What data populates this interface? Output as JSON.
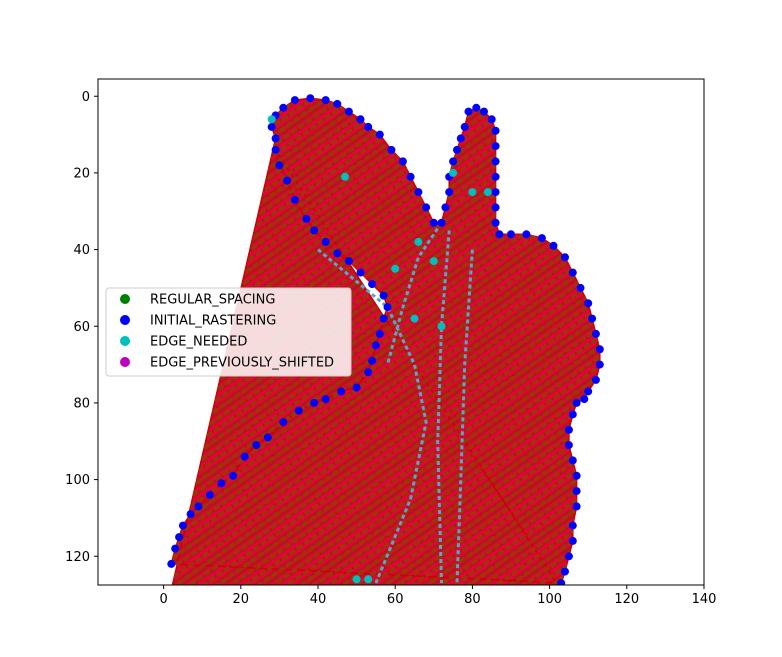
{
  "chart_data": {
    "type": "scatter",
    "title": "",
    "xlabel": "",
    "ylabel": "",
    "xlim": [
      -17,
      140
    ],
    "ylim": [
      127.5,
      -4.5
    ],
    "y_inverted": true,
    "grid": false,
    "legend_placement": "center-left",
    "x_ticks": [
      0,
      20,
      40,
      60,
      80,
      100,
      120,
      140
    ],
    "y_ticks": [
      0,
      20,
      40,
      60,
      80,
      100,
      120
    ],
    "x_tick_labels": [
      "0",
      "20",
      "40",
      "60",
      "80",
      "100",
      "120",
      "140"
    ],
    "y_tick_labels": [
      "0",
      "20",
      "40",
      "60",
      "80",
      "100",
      "120"
    ],
    "legend": [
      {
        "label": "REGULAR_SPACING",
        "color": "#008000"
      },
      {
        "label": "INITIAL_RASTERING",
        "color": "#0000ff"
      },
      {
        "label": "EDGE_NEEDED",
        "color": "#00bfbf"
      },
      {
        "label": "EDGE_PREVIOUSLY_SHIFTED",
        "color": "#bf00bf"
      }
    ],
    "series": [
      {
        "name": "INITIAL_RASTERING",
        "color": "#0000ff",
        "points": [
          [
            29,
            11
          ],
          [
            28,
            8
          ],
          [
            29,
            5
          ],
          [
            31,
            3
          ],
          [
            34,
            1
          ],
          [
            38,
            0.5
          ],
          [
            42,
            1
          ],
          [
            45,
            2
          ],
          [
            48,
            4
          ],
          [
            51,
            6
          ],
          [
            53,
            8
          ],
          [
            56,
            10
          ],
          [
            59,
            14
          ],
          [
            62,
            17
          ],
          [
            64,
            21
          ],
          [
            66,
            25
          ],
          [
            68,
            29
          ],
          [
            70,
            33
          ],
          [
            72,
            33
          ],
          [
            73,
            29
          ],
          [
            74,
            25
          ],
          [
            74,
            21
          ],
          [
            75,
            17
          ],
          [
            76,
            14
          ],
          [
            77,
            11
          ],
          [
            78,
            8
          ],
          [
            79,
            4
          ],
          [
            81,
            3
          ],
          [
            83,
            4
          ],
          [
            85,
            6
          ],
          [
            86,
            9
          ],
          [
            86,
            13
          ],
          [
            86,
            17
          ],
          [
            86,
            21
          ],
          [
            86,
            25
          ],
          [
            86,
            29
          ],
          [
            86,
            33
          ],
          [
            87,
            36
          ],
          [
            90,
            36
          ],
          [
            94,
            36
          ],
          [
            98,
            37
          ],
          [
            101,
            39
          ],
          [
            104,
            42
          ],
          [
            106,
            46
          ],
          [
            108,
            50
          ],
          [
            110,
            54
          ],
          [
            111,
            58
          ],
          [
            112,
            62
          ],
          [
            113,
            66
          ],
          [
            113,
            70
          ],
          [
            112,
            74
          ],
          [
            110,
            77
          ],
          [
            109,
            79
          ],
          [
            107,
            80
          ],
          [
            106,
            83
          ],
          [
            105,
            87
          ],
          [
            105,
            91
          ],
          [
            106,
            95
          ],
          [
            107,
            99
          ],
          [
            107,
            103
          ],
          [
            107,
            107
          ],
          [
            106,
            112
          ],
          [
            106,
            116
          ],
          [
            105,
            120
          ],
          [
            104,
            124
          ],
          [
            103,
            127
          ],
          [
            2,
            122
          ],
          [
            3,
            118
          ],
          [
            4,
            115
          ],
          [
            5,
            112
          ],
          [
            7,
            109
          ],
          [
            9,
            107
          ],
          [
            12,
            104
          ],
          [
            15,
            101
          ],
          [
            18,
            99
          ],
          [
            21,
            94
          ],
          [
            24,
            91
          ],
          [
            27,
            89
          ],
          [
            31,
            85
          ],
          [
            35,
            82
          ],
          [
            39,
            80
          ],
          [
            42,
            79
          ],
          [
            46,
            77
          ],
          [
            50,
            76
          ],
          [
            53,
            72
          ],
          [
            54,
            69
          ],
          [
            55,
            65
          ],
          [
            56,
            62
          ],
          [
            57,
            58
          ],
          [
            58,
            55
          ],
          [
            57,
            52
          ],
          [
            54,
            49
          ],
          [
            51,
            46
          ],
          [
            48,
            43
          ],
          [
            45,
            41
          ],
          [
            42,
            38
          ],
          [
            39,
            35
          ],
          [
            37,
            32
          ],
          [
            34,
            27
          ],
          [
            32,
            22
          ],
          [
            30,
            18
          ],
          [
            29,
            14
          ]
        ]
      },
      {
        "name": "EDGE_NEEDED",
        "color": "#00bfbf",
        "points": [
          [
            28,
            6
          ],
          [
            47,
            21
          ],
          [
            60,
            45
          ],
          [
            66,
            38
          ],
          [
            65,
            58
          ],
          [
            70,
            43
          ],
          [
            72,
            60
          ],
          [
            75,
            20
          ],
          [
            80,
            25
          ],
          [
            84,
            25
          ],
          [
            50,
            126
          ],
          [
            53,
            126
          ]
        ]
      }
    ]
  }
}
